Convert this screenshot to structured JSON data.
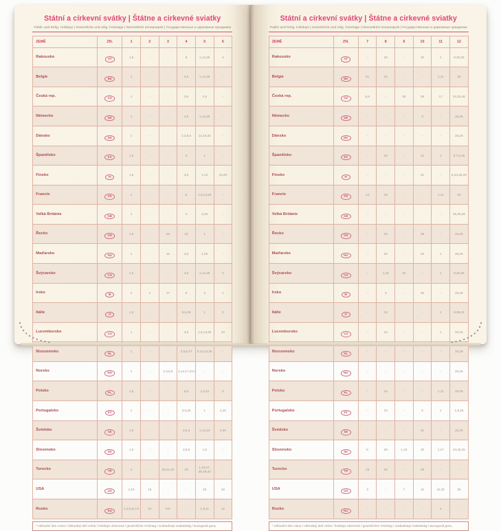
{
  "title": "Státní a církevní svátky | Štátne a cirkevné sviatky",
  "subtitle": "Public and Relig. Holidays | Gesetzliche und relig. Feiertage | Nemzetközi ünnepnapok | Государственные и церковные праздники",
  "footnote": "* náhradní den volna / náhradný deň voľna / holidays observed / gesetzlicher Feiertag / szabadnapi szabadság / выходной день",
  "colors": {
    "accent_pink": "#e0457a",
    "header_text": "#d23f63",
    "country_text": "#a84b52",
    "value_text": "#a2958a",
    "page_background": "#f8f2e4",
    "grid_border": "#dcb3a4"
  },
  "table": {
    "country_header": "ZEMĚ",
    "code_header": "ZN.",
    "months_left": [
      "1",
      "2",
      "3",
      "4",
      "5",
      "6"
    ],
    "months_right": [
      "7",
      "8",
      "9",
      "10",
      "11",
      "12"
    ],
    "rows": [
      {
        "country": "Rakousko",
        "code": "AT",
        "jan_jun": [
          "1,6",
          "-",
          "-",
          "6",
          "1,14,25",
          "4"
        ],
        "jul_dec": [
          "-",
          "15",
          "-",
          "26",
          "1",
          "8,25,26"
        ]
      },
      {
        "country": "Belgie",
        "code": "BE",
        "jan_jun": [
          "1",
          "-",
          "-",
          "3,6",
          "1,14,25",
          "-"
        ],
        "jul_dec": [
          "21",
          "15",
          "-",
          "-",
          "1,11",
          "25"
        ]
      },
      {
        "country": "Česká rep.",
        "code": "CZ",
        "jan_jun": [
          "1",
          "-",
          "-",
          "3,6",
          "1,8",
          "-"
        ],
        "jul_dec": [
          "5,6",
          "-",
          "28",
          "28",
          "17",
          "24,25,26"
        ]
      },
      {
        "country": "Německo",
        "code": "DE",
        "jan_jun": [
          "1",
          "-",
          "-",
          "3,6",
          "1,14,25",
          "-"
        ],
        "jul_dec": [
          "-",
          "-",
          "-",
          "3",
          "-",
          "25,26"
        ]
      },
      {
        "country": "Dánsko",
        "code": "DK",
        "jan_jun": [
          "1",
          "-",
          "-",
          "2,3,5,6",
          "14,24,25",
          "-"
        ],
        "jul_dec": [
          "-",
          "-",
          "-",
          "-",
          "-",
          "25,26"
        ]
      },
      {
        "country": "Španělsko",
        "code": "ES",
        "jan_jun": [
          "1,6",
          "-",
          "-",
          "3",
          "1",
          "-"
        ],
        "jul_dec": [
          "-",
          "15",
          "-",
          "12",
          "1",
          "6,7,8,25"
        ]
      },
      {
        "country": "Finsko",
        "code": "FI",
        "jan_jun": [
          "1,6",
          "-",
          "-",
          "3,6",
          "1,14",
          "19,20"
        ],
        "jul_dec": [
          "-",
          "-",
          "-",
          "31",
          "-",
          "6,24,25,26"
        ]
      },
      {
        "country": "Francie",
        "code": "FR",
        "jan_jun": [
          "1",
          "-",
          "-",
          "6",
          "1,8,14,25",
          "-"
        ],
        "jul_dec": [
          "14",
          "15",
          "-",
          "-",
          "1,11",
          "25"
        ]
      },
      {
        "country": "Velká Británie",
        "code": "GB",
        "jan_jun": [
          "1",
          "-",
          "-",
          "3",
          "4,25",
          "-"
        ],
        "jul_dec": [
          "-",
          "-",
          "-",
          "-",
          "-",
          "25,26,28"
        ]
      },
      {
        "country": "Řecko",
        "code": "GR",
        "jan_jun": [
          "1,6",
          "-",
          "25",
          "13",
          "1",
          "-"
        ],
        "jul_dec": [
          "-",
          "15",
          "-",
          "28",
          "-",
          "25,26"
        ]
      },
      {
        "country": "Maďarsko",
        "code": "HU",
        "jan_jun": [
          "1",
          "-",
          "15",
          "3,6",
          "1,25",
          "-"
        ],
        "jul_dec": [
          "-",
          "20",
          "-",
          "23",
          "1",
          "25,26"
        ]
      },
      {
        "country": "Švýcarsko",
        "code": "CH",
        "jan_jun": [
          "1,2",
          "-",
          "-",
          "3,6",
          "1,14,25",
          "4"
        ],
        "jul_dec": [
          "-",
          "1,15",
          "20",
          "-",
          "1",
          "8,25,26"
        ]
      },
      {
        "country": "Irsko",
        "code": "IE",
        "jan_jun": [
          "1",
          "2",
          "17",
          "6",
          "4",
          "1"
        ],
        "jul_dec": [
          "-",
          "3",
          "-",
          "26",
          "-",
          "25,26"
        ]
      },
      {
        "country": "Itálie",
        "code": "IT",
        "jan_jun": [
          "1,6",
          "-",
          "-",
          "5,6,25",
          "1",
          "2"
        ],
        "jul_dec": [
          "-",
          "15",
          "-",
          "-",
          "1",
          "8,25,26"
        ]
      },
      {
        "country": "Lucembursko",
        "code": "LU",
        "jan_jun": [
          "1",
          "-",
          "-",
          "3,6",
          "1,9,14,25",
          "23"
        ],
        "jul_dec": [
          "-",
          "15",
          "-",
          "-",
          "1",
          "25,26"
        ]
      },
      {
        "country": "Nizozemsko",
        "code": "NL",
        "jan_jun": [
          "1",
          "-",
          "-",
          "3,5,6,27",
          "5,14,24,25",
          "-"
        ],
        "jul_dec": [
          "-",
          "-",
          "-",
          "-",
          "-",
          "25,26"
        ]
      },
      {
        "country": "Norsko",
        "code": "NO",
        "jan_jun": [
          "1",
          "-",
          "2,3,5,6",
          "1,14,17,24,25",
          "-",
          "-"
        ],
        "jul_dec": [
          "-",
          "-",
          "-",
          "-",
          "-",
          "25,26"
        ]
      },
      {
        "country": "Polsko",
        "code": "PL",
        "jan_jun": [
          "1,6",
          "-",
          "-",
          "5,6",
          "1,3,24",
          "4"
        ],
        "jul_dec": [
          "-",
          "15",
          "-",
          "-",
          "1,11",
          "25,26"
        ]
      },
      {
        "country": "Portugalsko",
        "code": "PT",
        "jan_jun": [
          "1",
          "-",
          "-",
          "3,5,25",
          "1",
          "4,10"
        ],
        "jul_dec": [
          "-",
          "15",
          "-",
          "5",
          "1",
          "1,8,25"
        ]
      },
      {
        "country": "Švédsko",
        "code": "SE",
        "jan_jun": [
          "1,6",
          "-",
          "-",
          "3,5,6",
          "1,14,24",
          "6,20"
        ],
        "jul_dec": [
          "-",
          "-",
          "-",
          "31",
          "-",
          "25,26"
        ]
      },
      {
        "country": "Slovensko",
        "code": "SK",
        "jan_jun": [
          "1,6",
          "-",
          "-",
          "3,5,6",
          "1,8",
          "-"
        ],
        "jul_dec": [
          "5",
          "29",
          "1,15",
          "30",
          "1,17",
          "24,25,26"
        ]
      },
      {
        "country": "Turecko",
        "code": "TR",
        "jan_jun": [
          "1",
          "-",
          "20,21,22",
          "23",
          "1,19,27, 28,29,30",
          "-"
        ],
        "jul_dec": [
          "15",
          "30",
          "-",
          "29",
          "-",
          "-"
        ]
      },
      {
        "country": "USA",
        "code": "US",
        "jan_jun": [
          "1,19",
          "16",
          "-",
          "-",
          "25",
          "19"
        ],
        "jul_dec": [
          "3",
          "-",
          "7",
          "12",
          "11,26",
          "25"
        ]
      },
      {
        "country": "Rusko",
        "code": "RU",
        "jan_jun": [
          "1,2,5,6,7,8",
          "23",
          "8,9",
          "-",
          "1,9,11",
          "12"
        ],
        "jul_dec": [
          "-",
          "-",
          "-",
          "-",
          "4",
          "-"
        ]
      }
    ]
  }
}
